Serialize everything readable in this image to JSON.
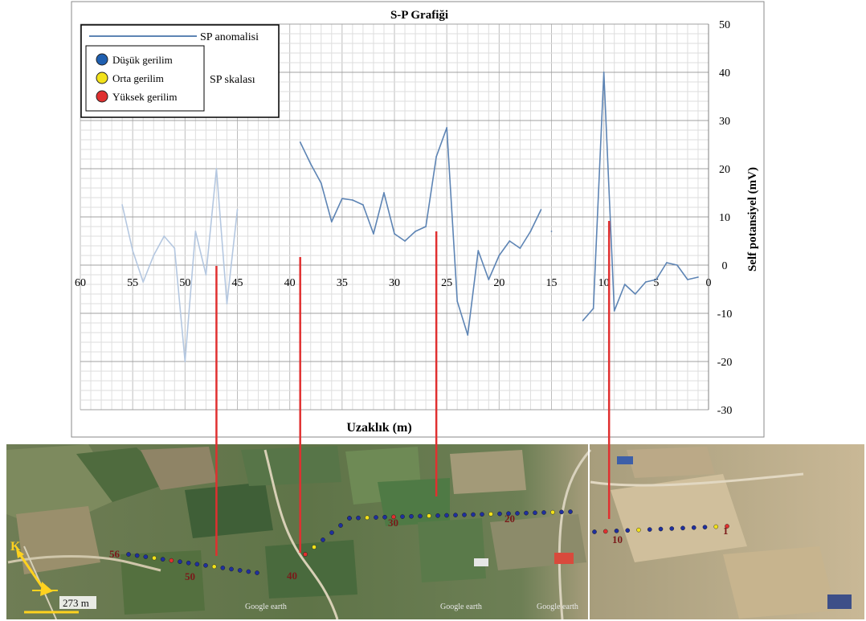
{
  "chart_data": {
    "type": "line",
    "title": "S-P Grafiği",
    "xlabel": "Uzaklık (m)",
    "ylabel": "Self potansiyel (mV)",
    "x_reversed": true,
    "xlim": [
      0,
      60
    ],
    "ylim": [
      -30,
      50
    ],
    "grid": true,
    "x_ticks": [
      60,
      55,
      50,
      45,
      40,
      35,
      30,
      25,
      20,
      15,
      10,
      5,
      0
    ],
    "y_ticks": [
      -30,
      -20,
      -10,
      0,
      10,
      20,
      30,
      40,
      50
    ],
    "legend": {
      "placement": "top-left",
      "line_label": "SP anomalisi",
      "scale_label": "SP skalası",
      "items": [
        {
          "label": "Düşük gerilim",
          "color": "#1f5fb0"
        },
        {
          "label": "Orta gerilim",
          "color": "#f2e21a"
        },
        {
          "label": "Yüksek gerilim",
          "color": "#e03030"
        }
      ]
    },
    "series": [
      {
        "color": "#b4c7e0",
        "x": [
          56,
          55,
          54,
          53,
          52,
          51,
          50,
          49,
          48,
          47,
          46,
          45
        ],
        "y": [
          12.5,
          3,
          -3.5,
          2,
          6,
          3.5,
          -20,
          7,
          -2,
          20,
          -8,
          11.5
        ]
      },
      {
        "color": "#5d84b4",
        "x": [
          39,
          38,
          37,
          36,
          35,
          34,
          33,
          32,
          31,
          30,
          29,
          28,
          27,
          26,
          25,
          24,
          23,
          22,
          21,
          20,
          19,
          18,
          17,
          16
        ],
        "y": [
          25.5,
          21,
          17,
          9,
          13.8,
          13.5,
          12.5,
          6.5,
          15,
          6.5,
          5,
          7,
          8,
          22.5,
          28.5,
          -7.5,
          -14.5,
          3,
          -3,
          2,
          5,
          3.5,
          7,
          11.5
        ]
      },
      {
        "color": "#5d84b4",
        "x": [
          15
        ],
        "y": [
          7
        ]
      },
      {
        "color": "#5d84b4",
        "x": [
          12,
          11,
          10,
          9,
          8,
          7,
          6,
          5,
          4,
          3,
          2,
          1
        ],
        "y": [
          -11.5,
          -9,
          40,
          -9.5,
          -4,
          -6,
          -3.5,
          -3,
          0.5,
          0,
          -3,
          -2.5
        ]
      }
    ],
    "markers": [
      {
        "distance": 47
      },
      {
        "distance": 39
      },
      {
        "distance": 26
      },
      {
        "distance": 9.5
      }
    ],
    "map": {
      "scale_label": "273 m",
      "north_label": "K",
      "station_labels": [
        "56",
        "50",
        "40",
        "30",
        "20",
        "10",
        "1"
      ],
      "watermarks": [
        "Google earth",
        "Google earth",
        "Google earth"
      ],
      "station_colors": [
        "#1f2f9e",
        "#f2e21a",
        "#e03030"
      ]
    }
  }
}
